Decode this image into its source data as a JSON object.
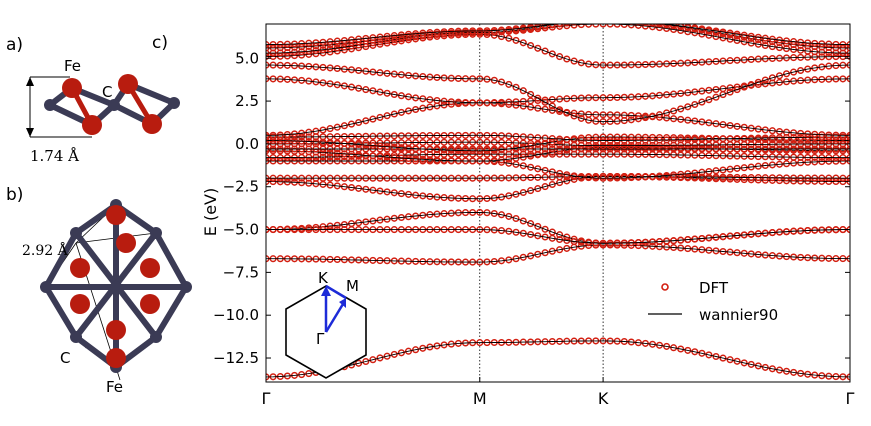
{
  "panels": {
    "a": "a)",
    "b": "b)",
    "c": "c)"
  },
  "struct_a": {
    "fe": "Fe",
    "c": "C",
    "dist": "1.74 Å"
  },
  "struct_b": {
    "dist": "2.92 Å",
    "c": "C",
    "fe": "Fe"
  },
  "bz": {
    "k": "K",
    "m": "M",
    "g": "Γ"
  },
  "colors": {
    "dft": "#d31f11",
    "wannier": "#000000",
    "atom_fe": "#b81c0f",
    "atom_c": "#3b3b55",
    "bz_arrow": "#1d2bd8"
  },
  "chart_data": {
    "type": "line",
    "ylabel": "E (eV)",
    "ylim": [
      -13.9,
      7.0
    ],
    "yticks": [
      5.0,
      2.5,
      0.0,
      -2.5,
      -5.0,
      -7.5,
      -10.0,
      -12.5
    ],
    "ytick_labels": [
      "5.0",
      "2.5",
      "0.0",
      "−2.5",
      "−5.0",
      "−7.5",
      "−10.0",
      "−12.5"
    ],
    "kpath": {
      "labels": [
        "Γ",
        "M",
        "K",
        "Γ"
      ],
      "positions": [
        0,
        1,
        1.577,
        2.732
      ]
    },
    "legend": [
      {
        "label": "DFT",
        "marker": "circle"
      },
      {
        "label": "wannier90",
        "marker": "line"
      }
    ],
    "bands": [
      [
        -13.6,
        -11.6,
        -11.5,
        -13.6
      ],
      [
        -6.7,
        -6.9,
        -5.9,
        -6.7
      ],
      [
        -5.0,
        -4.0,
        -5.8,
        -5.0
      ],
      [
        -5.0,
        -5.0,
        -5.8,
        -5.0
      ],
      [
        -2.2,
        -3.2,
        -1.9,
        -2.2
      ],
      [
        -2.0,
        -2.0,
        -1.9,
        -2.0
      ],
      [
        -1.0,
        -1.0,
        -2.0,
        -1.0
      ],
      [
        -0.8,
        -0.6,
        -0.6,
        -0.8
      ],
      [
        -0.4,
        -1.0,
        -0.2,
        -0.4
      ],
      [
        -0.3,
        -0.3,
        -0.3,
        -0.3
      ],
      [
        0.0,
        0.1,
        -0.1,
        0.0
      ],
      [
        0.2,
        -0.4,
        0.4,
        0.2
      ],
      [
        0.4,
        0.5,
        0.2,
        0.4
      ],
      [
        0.5,
        2.4,
        1.7,
        0.5
      ],
      [
        3.8,
        2.4,
        2.7,
        3.8
      ],
      [
        4.6,
        3.8,
        1.3,
        4.6
      ],
      [
        5.1,
        6.4,
        4.6,
        5.1
      ],
      [
        5.3,
        6.5,
        7.0,
        5.3
      ],
      [
        5.6,
        6.5,
        7.2,
        5.6
      ],
      [
        5.8,
        6.6,
        7.2,
        5.8
      ]
    ]
  }
}
